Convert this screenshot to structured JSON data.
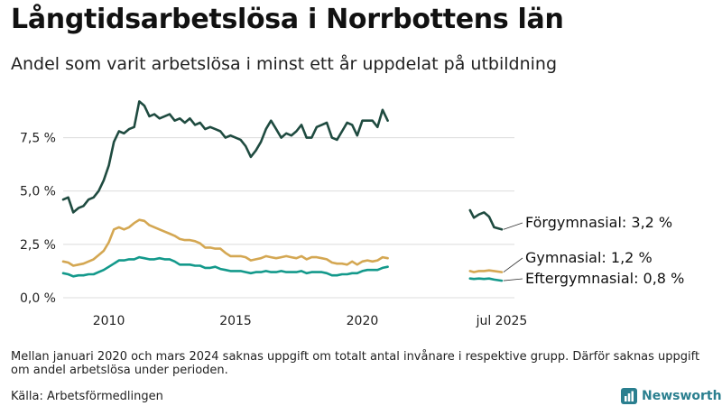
{
  "title": "Långtidsarbetslösa i Norrbottens län",
  "subtitle": "Andel som varit arbetslösa i minst ett år uppdelat på utbildning",
  "note": "Mellan januari 2020 och mars 2024 saknas uppgift om totalt antal invånare i respektive grupp. Därför saknas uppgift om andel arbetslösa under perioden.",
  "source": "Källa: Arbetsförmedlingen",
  "brand": "Newsworthy",
  "colors": {
    "forgymnasial": "#1f4b40",
    "gymnasial": "#d4a752",
    "eftergymnasial": "#13998b",
    "grid": "#dcdcdc",
    "brand": "#2a7f8f"
  },
  "chart_data": {
    "type": "line",
    "xlim": [
      2008.2,
      2026.0
    ],
    "ylim": [
      0,
      9.3
    ],
    "y_ticks": [
      0,
      2.5,
      5.0,
      7.5
    ],
    "y_tick_labels": [
      "0,0 %",
      "2,5 %",
      "5,0 %",
      "7,5 %"
    ],
    "x_ticks": [
      2010,
      2015,
      2020,
      2025.5
    ],
    "x_tick_labels": [
      "2010",
      "2015",
      "2020",
      "jul 2025"
    ],
    "series": [
      {
        "name": "Förgymnasial",
        "end_label": "Förgymnasial: 3,2 %",
        "color_key": "forgymnasial",
        "segments": [
          [
            [
              2008.2,
              4.6
            ],
            [
              2008.4,
              4.7
            ],
            [
              2008.6,
              4.0
            ],
            [
              2008.8,
              4.2
            ],
            [
              2009.0,
              4.3
            ],
            [
              2009.2,
              4.6
            ],
            [
              2009.4,
              4.7
            ],
            [
              2009.6,
              5.0
            ],
            [
              2009.8,
              5.5
            ],
            [
              2010.0,
              6.2
            ],
            [
              2010.2,
              7.3
            ],
            [
              2010.4,
              7.8
            ],
            [
              2010.6,
              7.7
            ],
            [
              2010.8,
              7.9
            ],
            [
              2011.0,
              8.0
            ],
            [
              2011.2,
              9.2
            ],
            [
              2011.4,
              9.0
            ],
            [
              2011.6,
              8.5
            ],
            [
              2011.8,
              8.6
            ],
            [
              2012.0,
              8.4
            ],
            [
              2012.2,
              8.5
            ],
            [
              2012.4,
              8.6
            ],
            [
              2012.6,
              8.3
            ],
            [
              2012.8,
              8.4
            ],
            [
              2013.0,
              8.2
            ],
            [
              2013.2,
              8.4
            ],
            [
              2013.4,
              8.1
            ],
            [
              2013.6,
              8.2
            ],
            [
              2013.8,
              7.9
            ],
            [
              2014.0,
              8.0
            ],
            [
              2014.2,
              7.9
            ],
            [
              2014.4,
              7.8
            ],
            [
              2014.6,
              7.5
            ],
            [
              2014.8,
              7.6
            ],
            [
              2015.0,
              7.5
            ],
            [
              2015.2,
              7.4
            ],
            [
              2015.4,
              7.1
            ],
            [
              2015.6,
              6.6
            ],
            [
              2015.8,
              6.9
            ],
            [
              2016.0,
              7.3
            ],
            [
              2016.2,
              7.9
            ],
            [
              2016.4,
              8.3
            ],
            [
              2016.6,
              7.9
            ],
            [
              2016.8,
              7.5
            ],
            [
              2017.0,
              7.7
            ],
            [
              2017.2,
              7.6
            ],
            [
              2017.4,
              7.8
            ],
            [
              2017.6,
              8.1
            ],
            [
              2017.8,
              7.5
            ],
            [
              2018.0,
              7.5
            ],
            [
              2018.2,
              8.0
            ],
            [
              2018.4,
              8.1
            ],
            [
              2018.6,
              8.2
            ],
            [
              2018.8,
              7.5
            ],
            [
              2019.0,
              7.4
            ],
            [
              2019.2,
              7.8
            ],
            [
              2019.4,
              8.2
            ],
            [
              2019.6,
              8.1
            ],
            [
              2019.8,
              7.6
            ],
            [
              2020.0,
              8.3
            ],
            [
              2020.2,
              8.3
            ],
            [
              2020.4,
              8.3
            ],
            [
              2020.6,
              8.0
            ],
            [
              2020.8,
              8.8
            ],
            [
              2021.0,
              8.3
            ]
          ],
          [
            [
              2024.25,
              4.1
            ],
            [
              2024.4,
              3.75
            ],
            [
              2024.6,
              3.9
            ],
            [
              2024.8,
              4.0
            ],
            [
              2025.0,
              3.8
            ],
            [
              2025.2,
              3.3
            ],
            [
              2025.5,
              3.2
            ]
          ]
        ]
      },
      {
        "name": "Gymnasial",
        "end_label": "Gymnasial: 1,2 %",
        "color_key": "gymnasial",
        "segments": [
          [
            [
              2008.2,
              1.7
            ],
            [
              2008.4,
              1.65
            ],
            [
              2008.6,
              1.5
            ],
            [
              2008.8,
              1.55
            ],
            [
              2009.0,
              1.6
            ],
            [
              2009.2,
              1.7
            ],
            [
              2009.4,
              1.8
            ],
            [
              2009.6,
              2.0
            ],
            [
              2009.8,
              2.2
            ],
            [
              2010.0,
              2.6
            ],
            [
              2010.2,
              3.2
            ],
            [
              2010.4,
              3.3
            ],
            [
              2010.6,
              3.2
            ],
            [
              2010.8,
              3.3
            ],
            [
              2011.0,
              3.5
            ],
            [
              2011.2,
              3.65
            ],
            [
              2011.4,
              3.6
            ],
            [
              2011.6,
              3.4
            ],
            [
              2011.8,
              3.3
            ],
            [
              2012.0,
              3.2
            ],
            [
              2012.2,
              3.1
            ],
            [
              2012.4,
              3.0
            ],
            [
              2012.6,
              2.9
            ],
            [
              2012.8,
              2.75
            ],
            [
              2013.0,
              2.7
            ],
            [
              2013.2,
              2.7
            ],
            [
              2013.4,
              2.65
            ],
            [
              2013.6,
              2.55
            ],
            [
              2013.8,
              2.35
            ],
            [
              2014.0,
              2.35
            ],
            [
              2014.2,
              2.3
            ],
            [
              2014.4,
              2.3
            ],
            [
              2014.6,
              2.1
            ],
            [
              2014.8,
              1.95
            ],
            [
              2015.0,
              1.95
            ],
            [
              2015.2,
              1.95
            ],
            [
              2015.4,
              1.9
            ],
            [
              2015.6,
              1.75
            ],
            [
              2015.8,
              1.8
            ],
            [
              2016.0,
              1.85
            ],
            [
              2016.2,
              1.95
            ],
            [
              2016.4,
              1.9
            ],
            [
              2016.6,
              1.85
            ],
            [
              2016.8,
              1.9
            ],
            [
              2017.0,
              1.95
            ],
            [
              2017.2,
              1.9
            ],
            [
              2017.4,
              1.85
            ],
            [
              2017.6,
              1.95
            ],
            [
              2017.8,
              1.8
            ],
            [
              2018.0,
              1.9
            ],
            [
              2018.2,
              1.9
            ],
            [
              2018.4,
              1.85
            ],
            [
              2018.6,
              1.8
            ],
            [
              2018.8,
              1.65
            ],
            [
              2019.0,
              1.6
            ],
            [
              2019.2,
              1.6
            ],
            [
              2019.4,
              1.55
            ],
            [
              2019.6,
              1.7
            ],
            [
              2019.8,
              1.55
            ],
            [
              2020.0,
              1.7
            ],
            [
              2020.2,
              1.75
            ],
            [
              2020.4,
              1.7
            ],
            [
              2020.6,
              1.75
            ],
            [
              2020.8,
              1.9
            ],
            [
              2021.0,
              1.85
            ]
          ],
          [
            [
              2024.25,
              1.25
            ],
            [
              2024.4,
              1.2
            ],
            [
              2024.6,
              1.25
            ],
            [
              2024.8,
              1.25
            ],
            [
              2025.0,
              1.28
            ],
            [
              2025.2,
              1.25
            ],
            [
              2025.5,
              1.2
            ]
          ]
        ]
      },
      {
        "name": "Eftergymnasial",
        "end_label": "Eftergymnasial: 0,8 %",
        "color_key": "eftergymnasial",
        "segments": [
          [
            [
              2008.2,
              1.15
            ],
            [
              2008.4,
              1.1
            ],
            [
              2008.6,
              1.0
            ],
            [
              2008.8,
              1.05
            ],
            [
              2009.0,
              1.05
            ],
            [
              2009.2,
              1.1
            ],
            [
              2009.4,
              1.1
            ],
            [
              2009.6,
              1.2
            ],
            [
              2009.8,
              1.3
            ],
            [
              2010.0,
              1.45
            ],
            [
              2010.2,
              1.6
            ],
            [
              2010.4,
              1.75
            ],
            [
              2010.6,
              1.75
            ],
            [
              2010.8,
              1.8
            ],
            [
              2011.0,
              1.8
            ],
            [
              2011.2,
              1.9
            ],
            [
              2011.4,
              1.85
            ],
            [
              2011.6,
              1.8
            ],
            [
              2011.8,
              1.8
            ],
            [
              2012.0,
              1.85
            ],
            [
              2012.2,
              1.8
            ],
            [
              2012.4,
              1.8
            ],
            [
              2012.6,
              1.7
            ],
            [
              2012.8,
              1.55
            ],
            [
              2013.0,
              1.55
            ],
            [
              2013.2,
              1.55
            ],
            [
              2013.4,
              1.5
            ],
            [
              2013.6,
              1.5
            ],
            [
              2013.8,
              1.4
            ],
            [
              2014.0,
              1.4
            ],
            [
              2014.2,
              1.45
            ],
            [
              2014.4,
              1.35
            ],
            [
              2014.6,
              1.3
            ],
            [
              2014.8,
              1.25
            ],
            [
              2015.0,
              1.25
            ],
            [
              2015.2,
              1.25
            ],
            [
              2015.4,
              1.2
            ],
            [
              2015.6,
              1.15
            ],
            [
              2015.8,
              1.2
            ],
            [
              2016.0,
              1.2
            ],
            [
              2016.2,
              1.25
            ],
            [
              2016.4,
              1.2
            ],
            [
              2016.6,
              1.2
            ],
            [
              2016.8,
              1.25
            ],
            [
              2017.0,
              1.2
            ],
            [
              2017.2,
              1.2
            ],
            [
              2017.4,
              1.2
            ],
            [
              2017.6,
              1.25
            ],
            [
              2017.8,
              1.15
            ],
            [
              2018.0,
              1.2
            ],
            [
              2018.2,
              1.2
            ],
            [
              2018.4,
              1.2
            ],
            [
              2018.6,
              1.15
            ],
            [
              2018.8,
              1.05
            ],
            [
              2019.0,
              1.05
            ],
            [
              2019.2,
              1.1
            ],
            [
              2019.4,
              1.1
            ],
            [
              2019.6,
              1.15
            ],
            [
              2019.8,
              1.15
            ],
            [
              2020.0,
              1.25
            ],
            [
              2020.2,
              1.3
            ],
            [
              2020.4,
              1.3
            ],
            [
              2020.6,
              1.3
            ],
            [
              2020.8,
              1.4
            ],
            [
              2021.0,
              1.45
            ]
          ],
          [
            [
              2024.25,
              0.9
            ],
            [
              2024.4,
              0.88
            ],
            [
              2024.6,
              0.9
            ],
            [
              2024.8,
              0.88
            ],
            [
              2025.0,
              0.9
            ],
            [
              2025.2,
              0.85
            ],
            [
              2025.5,
              0.8
            ]
          ]
        ]
      }
    ]
  }
}
